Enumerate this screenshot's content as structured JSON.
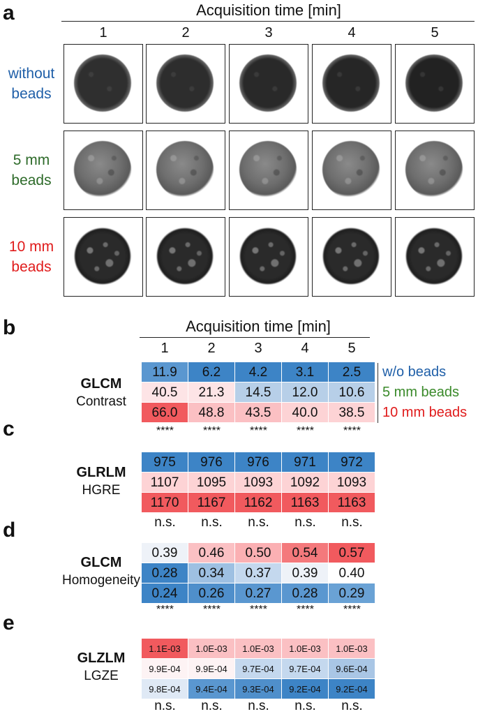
{
  "panel_a": {
    "letter": "a",
    "title": "Acquisition time [min]",
    "columns": [
      "1",
      "2",
      "3",
      "4",
      "5"
    ],
    "rows": [
      {
        "label_line1": "without",
        "label_line2": "beads",
        "color": "#1f5fa8"
      },
      {
        "label_line1": "5 mm",
        "label_line2": "beads",
        "color": "#2e6b2a"
      },
      {
        "label_line1": "10 mm",
        "label_line2": "beads",
        "color": "#e01b1b"
      }
    ]
  },
  "panel_b": {
    "letter": "b",
    "title": "Acquisition time [min]",
    "columns": [
      "1",
      "2",
      "3",
      "4",
      "5"
    ],
    "metric": "GLCM",
    "sub": "Contrast",
    "values": [
      [
        "11.9",
        "6.2",
        "4.2",
        "3.1",
        "2.5"
      ],
      [
        "40.5",
        "21.3",
        "14.5",
        "12.0",
        "10.6"
      ],
      [
        "66.0",
        "48.8",
        "43.5",
        "40.0",
        "38.5"
      ]
    ],
    "colors": [
      [
        "#5a97d0",
        "#3d84c6",
        "#3d84c6",
        "#3d84c6",
        "#3d84c6"
      ],
      [
        "#fde4e6",
        "#fde4e6",
        "#b7cfe8",
        "#b7cfe8",
        "#b7cfe8"
      ],
      [
        "#f15a5e",
        "#fbc0c3",
        "#fbc0c3",
        "#fdd3d5",
        "#fdd3d5"
      ]
    ],
    "significance": [
      "****",
      "****",
      "****",
      "****",
      "****"
    ],
    "legend": [
      {
        "text": "w/o beads",
        "color": "#1f5fa8"
      },
      {
        "text": "5 mm beads",
        "color": "#3a8a2a"
      },
      {
        "text": "10 mm beads",
        "color": "#e01b1b"
      }
    ]
  },
  "panel_c": {
    "letter": "c",
    "metric": "GLRLM",
    "sub": "HGRE",
    "values": [
      [
        "975",
        "976",
        "976",
        "971",
        "972"
      ],
      [
        "1107",
        "1095",
        "1093",
        "1092",
        "1093"
      ],
      [
        "1170",
        "1167",
        "1162",
        "1163",
        "1163"
      ]
    ],
    "colors": [
      [
        "#3d84c6",
        "#3d84c6",
        "#3d84c6",
        "#3d84c6",
        "#3d84c6"
      ],
      [
        "#fdd3d5",
        "#fdd3d5",
        "#fdd3d5",
        "#fdd3d5",
        "#fdd3d5"
      ],
      [
        "#f15a5e",
        "#f15a5e",
        "#f15a5e",
        "#f15a5e",
        "#f15a5e"
      ]
    ],
    "significance": [
      "n.s.",
      "n.s.",
      "n.s.",
      "n.s.",
      "n.s."
    ]
  },
  "panel_d": {
    "letter": "d",
    "metric": "GLCM",
    "sub": "Homogeneity",
    "values": [
      [
        "0.39",
        "0.46",
        "0.50",
        "0.54",
        "0.57"
      ],
      [
        "0.28",
        "0.34",
        "0.37",
        "0.39",
        "0.40"
      ],
      [
        "0.24",
        "0.26",
        "0.27",
        "0.28",
        "0.29"
      ]
    ],
    "colors": [
      [
        "#eef2f8",
        "#fbc0c3",
        "#fbb0b3",
        "#f4797c",
        "#f15a5e"
      ],
      [
        "#3d84c6",
        "#9ec0e2",
        "#c4d8ee",
        "#eef2f8",
        "#ffffff"
      ],
      [
        "#3d84c6",
        "#4f8fcb",
        "#5a97d0",
        "#5a97d0",
        "#6aa2d5"
      ]
    ],
    "significance": [
      "****",
      "****",
      "****",
      "****",
      "****"
    ]
  },
  "panel_e": {
    "letter": "e",
    "metric": "GLZLM",
    "sub": "LGZE",
    "values": [
      [
        "1.1E-03",
        "1.0E-03",
        "1.0E-03",
        "1.0E-03",
        "1.0E-03"
      ],
      [
        "9.9E-04",
        "9.9E-04",
        "9.7E-04",
        "9.7E-04",
        "9.6E-04"
      ],
      [
        "9.8E-04",
        "9.4E-04",
        "9.3E-04",
        "9.2E-04",
        "9.2E-04"
      ]
    ],
    "colors": [
      [
        "#f15a5e",
        "#fbc0c3",
        "#fbc0c3",
        "#fbc0c3",
        "#fbc0c3"
      ],
      [
        "#fdf3f4",
        "#fdf3f4",
        "#c4d8ee",
        "#c4d8ee",
        "#a9c6e5"
      ],
      [
        "#dfe9f5",
        "#5a97d0",
        "#4f8fcb",
        "#3d84c6",
        "#3d84c6"
      ]
    ],
    "significance": [
      "n.s.",
      "n.s.",
      "n.s.",
      "n.s.",
      "n.s."
    ]
  }
}
